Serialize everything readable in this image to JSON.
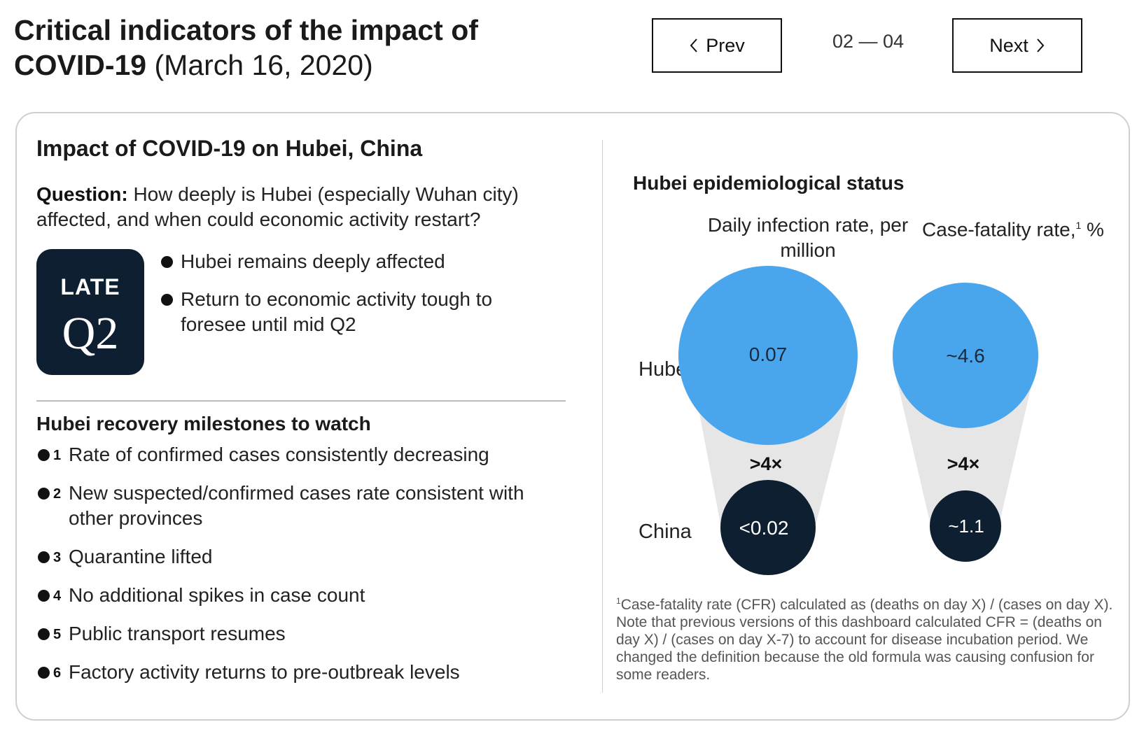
{
  "header": {
    "title_bold": "Critical indicators of the impact of COVID-19",
    "title_date": "(March 16, 2020)",
    "prev_label": "Prev",
    "next_label": "Next",
    "pager": "02 — 04"
  },
  "left": {
    "heading": "Impact of COVID-19 on Hubei, China",
    "question_label": "Question:",
    "question_text": "How deeply is Hubei (especially Wuhan city) affected, and when could economic activity restart?",
    "badge_top": "LATE",
    "badge_bottom": "Q2",
    "points": [
      "Hubei remains deeply affected",
      "Return to economic activity tough to foresee until mid Q2"
    ],
    "milestones_heading": "Hubei recovery milestones to watch",
    "milestones": [
      {
        "num": "1",
        "text": "Rate of confirmed cases consistently decreasing"
      },
      {
        "num": "2",
        "text": "New suspected/confirmed cases rate consistent with other provinces"
      },
      {
        "num": "3",
        "text": "Quarantine lifted"
      },
      {
        "num": "4",
        "text": "No additional spikes in case count"
      },
      {
        "num": "5",
        "text": "Public transport resumes"
      },
      {
        "num": "6",
        "text": "Factory activity returns to pre-outbreak levels"
      }
    ]
  },
  "right": {
    "heading": "Hubei epidemiological status",
    "col1_label": "Daily infection rate, per million",
    "col2_label_main": "Case-fatality rate,",
    "col2_label_sup": "1",
    "col2_label_unit": " %",
    "row_hubei": "Hubei",
    "row_china": "China",
    "infection_hubei": "0.07",
    "infection_china": "<0.02",
    "infection_ratio": ">4×",
    "fatality_hubei": "~4.6",
    "fatality_china": "~1.1",
    "fatality_ratio": ">4×",
    "footnote_sup": "1",
    "footnote_text": "Case-fatality rate (CFR) calculated as (deaths on day X) / (cases on day X). Note that previous versions of this dashboard calculated CFR = (deaths on day X) / (cases on day X-7) to account for disease incubation period. We changed the definition because the old formula was causing confusion for some readers."
  },
  "colors": {
    "hubei_circle": "#4aa6ec",
    "china_circle": "#0d1f30",
    "connector": "#e6e6e6",
    "badge": "#0d1f30"
  }
}
